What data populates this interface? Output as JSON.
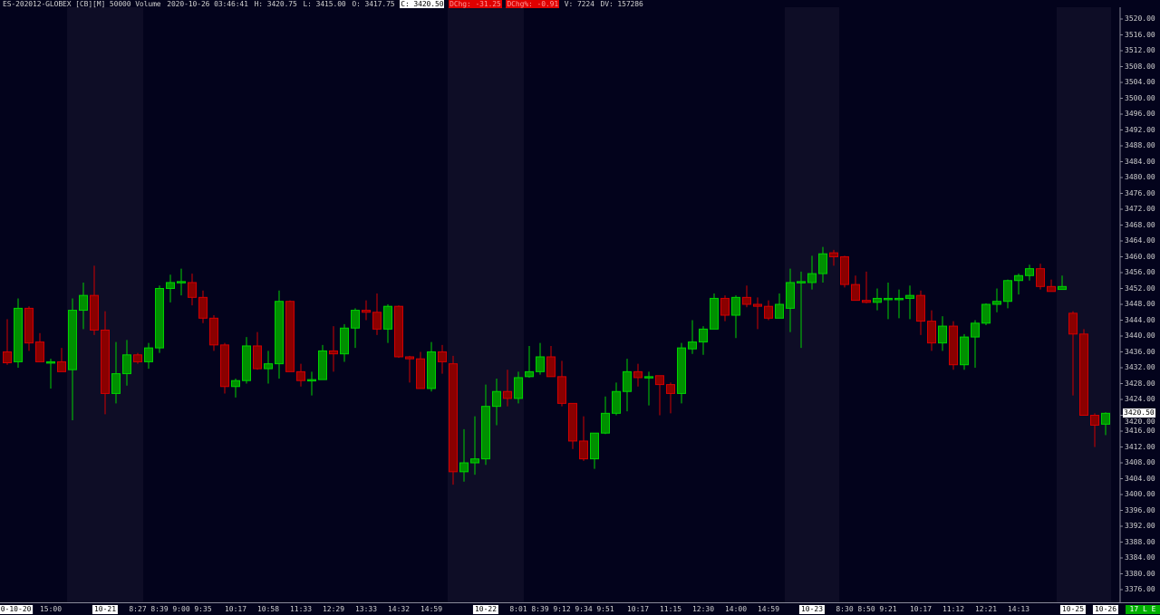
{
  "header": {
    "symbol": "ES-202012-GLOBEX [CB][M] 50000 Volume",
    "datetime": "2020-10-26 03:46:41",
    "high": "H: 3420.75",
    "low": "L: 3415.00",
    "open": "O: 3417.75",
    "close": "C: 3420.50",
    "dchg": "DChg: -31.25",
    "dchg_pct": "DChg%: -0.91",
    "volume": "V: 7224",
    "dv": "DV: 157286"
  },
  "status_box": "17 L E",
  "colors": {
    "background": "#03031c",
    "session_shade": "#0e0d26",
    "up_body": "#009000",
    "up_border": "#00d000",
    "down_body": "#8a0000",
    "down_border": "#d00000",
    "status_green": "#00b000",
    "dchg_red": "#e00000"
  },
  "chart_data": {
    "type": "candlestick",
    "title": "",
    "xlabel": "",
    "ylabel": "",
    "ylim": [
      3374,
      3522
    ],
    "current_price": "3420.50",
    "y_ticks": [
      "3520.00",
      "3516.00",
      "3512.00",
      "3508.00",
      "3504.00",
      "3500.00",
      "3496.00",
      "3492.00",
      "3488.00",
      "3484.00",
      "3480.00",
      "3476.00",
      "3472.00",
      "3468.00",
      "3464.00",
      "3460.00",
      "3456.00",
      "3452.00",
      "3448.00",
      "3444.00",
      "3440.00",
      "3436.00",
      "3432.00",
      "3428.00",
      "3424.00",
      "3420.00",
      "3416.00",
      "3412.00",
      "3408.00",
      "3404.00",
      "3400.00",
      "3396.00",
      "3392.00",
      "3388.00",
      "3384.00",
      "3380.00",
      "3376.00"
    ],
    "x_ticks": [
      {
        "label": "0-10-20",
        "candle": 0.8,
        "boxed": true
      },
      {
        "label": "15:00",
        "candle": 4,
        "boxed": false
      },
      {
        "label": "10-21",
        "candle": 9,
        "boxed": true
      },
      {
        "label": "8:27",
        "candle": 12,
        "boxed": false
      },
      {
        "label": "8:39",
        "candle": 14,
        "boxed": false
      },
      {
        "label": "9:00",
        "candle": 16,
        "boxed": false
      },
      {
        "label": "9:35",
        "candle": 18,
        "boxed": false
      },
      {
        "label": "10:17",
        "candle": 21,
        "boxed": false
      },
      {
        "label": "10:58",
        "candle": 24,
        "boxed": false
      },
      {
        "label": "11:33",
        "candle": 27,
        "boxed": false
      },
      {
        "label": "12:29",
        "candle": 30,
        "boxed": false
      },
      {
        "label": "13:33",
        "candle": 33,
        "boxed": false
      },
      {
        "label": "14:32",
        "candle": 36,
        "boxed": false
      },
      {
        "label": "14:59",
        "candle": 39,
        "boxed": false
      },
      {
        "label": "10-22",
        "candle": 44,
        "boxed": true
      },
      {
        "label": "8:01",
        "candle": 47,
        "boxed": false
      },
      {
        "label": "8:39",
        "candle": 49,
        "boxed": false
      },
      {
        "label": "9:12",
        "candle": 51,
        "boxed": false
      },
      {
        "label": "9:34",
        "candle": 53,
        "boxed": false
      },
      {
        "label": "9:51",
        "candle": 55,
        "boxed": false
      },
      {
        "label": "10:17",
        "candle": 58,
        "boxed": false
      },
      {
        "label": "11:15",
        "candle": 61,
        "boxed": false
      },
      {
        "label": "12:30",
        "candle": 64,
        "boxed": false
      },
      {
        "label": "14:00",
        "candle": 67,
        "boxed": false
      },
      {
        "label": "14:59",
        "candle": 70,
        "boxed": false
      },
      {
        "label": "10-23",
        "candle": 74,
        "boxed": true
      },
      {
        "label": "8:30",
        "candle": 77,
        "boxed": false
      },
      {
        "label": "8:50",
        "candle": 79,
        "boxed": false
      },
      {
        "label": "9:21",
        "candle": 81,
        "boxed": false
      },
      {
        "label": "10:17",
        "candle": 84,
        "boxed": false
      },
      {
        "label": "11:12",
        "candle": 87,
        "boxed": false
      },
      {
        "label": "12:21",
        "candle": 90,
        "boxed": false
      },
      {
        "label": "14:13",
        "candle": 93,
        "boxed": false
      },
      {
        "label": "10-25",
        "candle": 98,
        "boxed": true
      },
      {
        "label": "10-26",
        "candle": 101,
        "boxed": true
      }
    ],
    "shaded_sessions": [
      [
        6,
        12
      ],
      [
        41,
        47
      ],
      [
        72,
        76
      ],
      [
        97,
        101
      ]
    ],
    "ohlc_fields": [
      "open",
      "high",
      "low",
      "close"
    ],
    "candles": [
      [
        3436,
        3444.25,
        3432.75,
        3433.25
      ],
      [
        3433.5,
        3449.5,
        3432,
        3447
      ],
      [
        3447,
        3447.5,
        3436.25,
        3438.25
      ],
      [
        3438.5,
        3440.75,
        3433.5,
        3433.5
      ],
      [
        3433.5,
        3434.25,
        3426.75,
        3433.5
      ],
      [
        3433.5,
        3437,
        3431,
        3431
      ],
      [
        3431.5,
        3449.5,
        3418.75,
        3446.5
      ],
      [
        3446.5,
        3453.5,
        3441.75,
        3450.25
      ],
      [
        3450.25,
        3457.75,
        3440.25,
        3441.5
      ],
      [
        3441.5,
        3446.25,
        3420.25,
        3425.5
      ],
      [
        3425.5,
        3438.5,
        3423,
        3430.5
      ],
      [
        3430.5,
        3439,
        3427.5,
        3435.25
      ],
      [
        3435.25,
        3435.75,
        3433,
        3433.5
      ],
      [
        3433.5,
        3438.25,
        3431.75,
        3437
      ],
      [
        3437,
        3452.75,
        3435.75,
        3452
      ],
      [
        3452,
        3455.5,
        3448.5,
        3453.5
      ],
      [
        3453.5,
        3457,
        3450.25,
        3453.75
      ],
      [
        3453.5,
        3455.75,
        3447.75,
        3449.75
      ],
      [
        3449.75,
        3451.5,
        3443.25,
        3444.5
      ],
      [
        3444.5,
        3445.25,
        3436.25,
        3437.75
      ],
      [
        3437.75,
        3438.25,
        3425.5,
        3427.25
      ],
      [
        3427.25,
        3429.25,
        3424.5,
        3428.75
      ],
      [
        3428.75,
        3439.75,
        3428,
        3437.5
      ],
      [
        3437.5,
        3441,
        3431.5,
        3431.75
      ],
      [
        3431.75,
        3436.25,
        3428,
        3433
      ],
      [
        3433,
        3451.5,
        3429.25,
        3448.75
      ],
      [
        3448.75,
        3449,
        3431,
        3431
      ],
      [
        3431,
        3433,
        3427.25,
        3428.75
      ],
      [
        3428.75,
        3431,
        3425,
        3429
      ],
      [
        3429,
        3437.75,
        3429,
        3436.25
      ],
      [
        3436.25,
        3442.5,
        3431,
        3435.5
      ],
      [
        3435.5,
        3443,
        3433.5,
        3442
      ],
      [
        3442,
        3447,
        3437,
        3446.5
      ],
      [
        3446.5,
        3449,
        3444,
        3446
      ],
      [
        3446,
        3450.75,
        3440.25,
        3441.75
      ],
      [
        3441.75,
        3448,
        3438.25,
        3447.5
      ],
      [
        3447.5,
        3447.75,
        3434.5,
        3434.75
      ],
      [
        3434.75,
        3435,
        3428.25,
        3434.25
      ],
      [
        3434.25,
        3436,
        3426.75,
        3426.75
      ],
      [
        3426.75,
        3438.5,
        3426,
        3436
      ],
      [
        3436,
        3437.75,
        3430.5,
        3433.5
      ],
      [
        3433,
        3435,
        3402.5,
        3405.75
      ],
      [
        3405.75,
        3416.5,
        3403.25,
        3408
      ],
      [
        3408,
        3419.75,
        3405,
        3409
      ],
      [
        3409,
        3427.75,
        3407.5,
        3422.25
      ],
      [
        3422.25,
        3429.25,
        3417.5,
        3426
      ],
      [
        3426,
        3431.5,
        3422.25,
        3424.25
      ],
      [
        3424.25,
        3431,
        3423,
        3429.5
      ],
      [
        3429.75,
        3437.5,
        3429.5,
        3431
      ],
      [
        3431,
        3438.25,
        3430.25,
        3434.75
      ],
      [
        3434.75,
        3437.5,
        3429.75,
        3429.75
      ],
      [
        3429.75,
        3433.75,
        3422.25,
        3423
      ],
      [
        3423,
        3423,
        3411.5,
        3413.5
      ],
      [
        3413.5,
        3419.75,
        3408.5,
        3409
      ],
      [
        3409,
        3415.5,
        3406.5,
        3415.5
      ],
      [
        3415.5,
        3424.75,
        3415.25,
        3420.5
      ],
      [
        3420.5,
        3428.25,
        3420,
        3426
      ],
      [
        3426,
        3434.25,
        3421,
        3431
      ],
      [
        3431,
        3433,
        3427.25,
        3429.5
      ],
      [
        3429.5,
        3431,
        3422.5,
        3429.75
      ],
      [
        3430,
        3430,
        3420,
        3427.75
      ],
      [
        3427.75,
        3428.25,
        3420.5,
        3425.5
      ],
      [
        3425.5,
        3438.25,
        3423,
        3437
      ],
      [
        3436.75,
        3444,
        3435.5,
        3438.5
      ],
      [
        3438.5,
        3442.5,
        3435.25,
        3441.75
      ],
      [
        3441.75,
        3450.75,
        3441.75,
        3449.5
      ],
      [
        3449.5,
        3450.25,
        3443.75,
        3445.25
      ],
      [
        3445.25,
        3450.25,
        3439.5,
        3449.75
      ],
      [
        3449.75,
        3452.75,
        3447.25,
        3448
      ],
      [
        3448,
        3449.75,
        3441.75,
        3447.5
      ],
      [
        3447.5,
        3449,
        3444,
        3444.5
      ],
      [
        3444.5,
        3450.75,
        3444.5,
        3448
      ],
      [
        3447,
        3457,
        3441,
        3453.5
      ],
      [
        3453.5,
        3456.25,
        3437,
        3453.75
      ],
      [
        3453.5,
        3460.25,
        3451.75,
        3455.75
      ],
      [
        3455.75,
        3462.5,
        3453.5,
        3460.75
      ],
      [
        3461,
        3461.75,
        3457.75,
        3460
      ],
      [
        3460,
        3460.25,
        3452.25,
        3453
      ],
      [
        3453,
        3455.25,
        3449,
        3449
      ],
      [
        3449,
        3456.25,
        3448.25,
        3448.5
      ],
      [
        3448.5,
        3452,
        3446.5,
        3449.5
      ],
      [
        3449.5,
        3453.5,
        3444.25,
        3449.5
      ],
      [
        3449.5,
        3451.75,
        3444.5,
        3449.5
      ],
      [
        3449.5,
        3452.75,
        3444.25,
        3450.25
      ],
      [
        3450.25,
        3451.5,
        3440.25,
        3443.75
      ],
      [
        3443.75,
        3446.5,
        3436.25,
        3438.25
      ],
      [
        3438.25,
        3445,
        3436.25,
        3442.5
      ],
      [
        3442.5,
        3443.75,
        3431.5,
        3432.75
      ],
      [
        3432.75,
        3440.5,
        3431.5,
        3439.75
      ],
      [
        3439.75,
        3444,
        3432,
        3443.25
      ],
      [
        3443.25,
        3448.25,
        3442.75,
        3448
      ],
      [
        3448,
        3452,
        3446,
        3448.75
      ],
      [
        3448.75,
        3454.25,
        3447,
        3454
      ],
      [
        3454,
        3455.75,
        3450.5,
        3455.25
      ],
      [
        3455.25,
        3458,
        3454,
        3457
      ],
      [
        3457,
        3458.25,
        3451.75,
        3452.5
      ],
      [
        3452.5,
        3454.25,
        3451.25,
        3451.25
      ],
      [
        3451.75,
        3455.25,
        3451.75,
        3452.5
      ],
      [
        3445.75,
        3446.25,
        3425,
        3440.5
      ],
      [
        3440.5,
        3441.75,
        3420,
        3420
      ],
      [
        3420,
        3420.5,
        3412,
        3417.5
      ],
      [
        3417.75,
        3420.75,
        3415,
        3420.5
      ]
    ]
  }
}
